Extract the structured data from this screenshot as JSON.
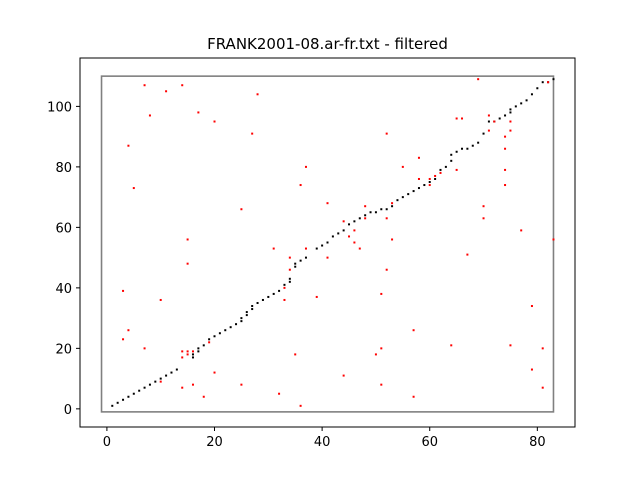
{
  "chart_data": {
    "type": "scatter",
    "title": "FRANK2001-08.ar-fr.txt - filtered",
    "xlabel": "",
    "ylabel": "",
    "xlim": [
      -5,
      87
    ],
    "ylim": [
      -6,
      116
    ],
    "x_ticks": [
      0,
      20,
      40,
      60,
      80
    ],
    "y_ticks": [
      0,
      20,
      40,
      60,
      80,
      100
    ],
    "grid": false,
    "colors": {
      "kept": "#000000",
      "filtered": "#ff0000",
      "frame": "#808080"
    },
    "frame_rect": {
      "x0": -1,
      "x1": 83,
      "y0": -1,
      "y1": 110
    },
    "series": [
      {
        "color": "#000000",
        "points": [
          [
            1,
            1
          ],
          [
            2,
            2
          ],
          [
            3,
            3
          ],
          [
            4,
            4
          ],
          [
            5,
            5
          ],
          [
            6,
            6
          ],
          [
            7,
            7
          ],
          [
            8,
            8
          ],
          [
            9,
            9
          ],
          [
            10,
            10
          ],
          [
            11,
            11
          ],
          [
            12,
            12
          ],
          [
            13,
            13
          ],
          [
            16,
            17
          ],
          [
            16,
            18
          ],
          [
            17,
            19
          ],
          [
            17,
            20
          ],
          [
            18,
            21
          ],
          [
            19,
            23
          ],
          [
            20,
            24
          ],
          [
            21,
            25
          ],
          [
            22,
            26
          ],
          [
            23,
            27
          ],
          [
            24,
            28
          ],
          [
            25,
            29
          ],
          [
            25,
            30
          ],
          [
            26,
            31
          ],
          [
            26,
            32
          ],
          [
            27,
            33
          ],
          [
            27,
            34
          ],
          [
            28,
            35
          ],
          [
            29,
            36
          ],
          [
            30,
            37
          ],
          [
            31,
            38
          ],
          [
            32,
            39
          ],
          [
            33,
            41
          ],
          [
            34,
            42
          ],
          [
            34,
            43
          ],
          [
            35,
            47
          ],
          [
            35,
            48
          ],
          [
            36,
            49
          ],
          [
            37,
            50
          ],
          [
            39,
            53
          ],
          [
            40,
            54
          ],
          [
            41,
            55
          ],
          [
            42,
            57
          ],
          [
            43,
            58
          ],
          [
            44,
            59
          ],
          [
            45,
            61
          ],
          [
            46,
            62
          ],
          [
            47,
            63
          ],
          [
            48,
            64
          ],
          [
            49,
            65
          ],
          [
            50,
            65
          ],
          [
            51,
            66
          ],
          [
            52,
            66
          ],
          [
            53,
            67
          ],
          [
            54,
            69
          ],
          [
            55,
            70
          ],
          [
            56,
            71
          ],
          [
            57,
            72
          ],
          [
            58,
            73
          ],
          [
            59,
            74
          ],
          [
            60,
            75
          ],
          [
            61,
            76
          ],
          [
            62,
            79
          ],
          [
            63,
            80
          ],
          [
            64,
            82
          ],
          [
            64,
            84
          ],
          [
            65,
            85
          ],
          [
            66,
            86
          ],
          [
            67,
            86
          ],
          [
            68,
            87
          ],
          [
            69,
            88
          ],
          [
            70,
            91
          ],
          [
            71,
            95
          ],
          [
            72,
            95
          ],
          [
            73,
            96
          ],
          [
            74,
            97
          ],
          [
            75,
            98
          ],
          [
            75,
            99
          ],
          [
            76,
            100
          ],
          [
            77,
            101
          ],
          [
            78,
            102
          ],
          [
            79,
            104
          ],
          [
            80,
            106
          ],
          [
            81,
            108
          ],
          [
            82,
            108
          ],
          [
            83,
            109
          ]
        ]
      },
      {
        "color": "#ff0000",
        "points": [
          [
            3,
            39
          ],
          [
            3,
            23
          ],
          [
            4,
            26
          ],
          [
            4,
            87
          ],
          [
            5,
            73
          ],
          [
            7,
            107
          ],
          [
            7,
            20
          ],
          [
            8,
            97
          ],
          [
            10,
            36
          ],
          [
            10,
            9
          ],
          [
            11,
            105
          ],
          [
            14,
            107
          ],
          [
            14,
            19
          ],
          [
            14,
            17
          ],
          [
            14,
            7
          ],
          [
            15,
            56
          ],
          [
            15,
            48
          ],
          [
            15,
            19
          ],
          [
            15,
            18
          ],
          [
            16,
            19
          ],
          [
            16,
            8
          ],
          [
            17,
            98
          ],
          [
            18,
            4
          ],
          [
            19,
            22
          ],
          [
            20,
            95
          ],
          [
            20,
            12
          ],
          [
            25,
            66
          ],
          [
            25,
            8
          ],
          [
            27,
            91
          ],
          [
            28,
            104
          ],
          [
            31,
            53
          ],
          [
            32,
            5
          ],
          [
            33,
            36
          ],
          [
            33,
            40
          ],
          [
            34,
            50
          ],
          [
            34,
            46
          ],
          [
            35,
            18
          ],
          [
            36,
            1
          ],
          [
            36,
            74
          ],
          [
            37,
            80
          ],
          [
            37,
            53
          ],
          [
            39,
            37
          ],
          [
            41,
            68
          ],
          [
            41,
            50
          ],
          [
            44,
            62
          ],
          [
            44,
            11
          ],
          [
            45,
            57
          ],
          [
            46,
            55
          ],
          [
            46,
            59
          ],
          [
            47,
            53
          ],
          [
            48,
            67
          ],
          [
            48,
            63
          ],
          [
            50,
            18
          ],
          [
            51,
            38
          ],
          [
            51,
            20
          ],
          [
            51,
            8
          ],
          [
            52,
            91
          ],
          [
            52,
            63
          ],
          [
            52,
            46
          ],
          [
            53,
            56
          ],
          [
            53,
            68
          ],
          [
            55,
            80
          ],
          [
            57,
            26
          ],
          [
            57,
            4
          ],
          [
            58,
            83
          ],
          [
            58,
            76
          ],
          [
            60,
            76
          ],
          [
            60,
            74
          ],
          [
            61,
            77
          ],
          [
            62,
            78
          ],
          [
            64,
            21
          ],
          [
            65,
            96
          ],
          [
            65,
            79
          ],
          [
            66,
            96
          ],
          [
            67,
            51
          ],
          [
            69,
            109
          ],
          [
            70,
            67
          ],
          [
            70,
            63
          ],
          [
            71,
            97
          ],
          [
            71,
            92
          ],
          [
            72,
            95
          ],
          [
            74,
            90
          ],
          [
            74,
            86
          ],
          [
            74,
            79
          ],
          [
            74,
            74
          ],
          [
            75,
            95
          ],
          [
            75,
            92
          ],
          [
            75,
            21
          ],
          [
            77,
            59
          ],
          [
            79,
            34
          ],
          [
            79,
            13
          ],
          [
            81,
            20
          ],
          [
            81,
            7
          ],
          [
            82,
            108
          ],
          [
            83,
            56
          ]
        ]
      }
    ]
  }
}
